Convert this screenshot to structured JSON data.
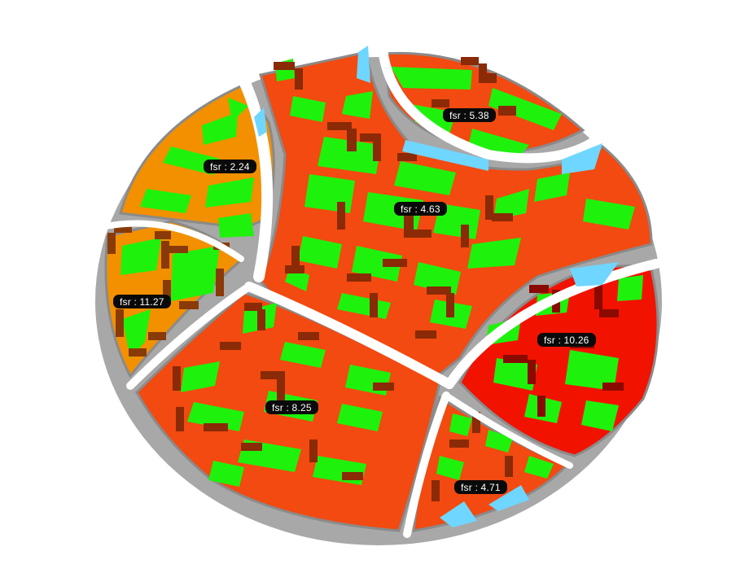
{
  "colors": {
    "orange_light": "#f29000",
    "orange_red": "#f24a10",
    "red": "#f21200",
    "courtyard": "#1ef20c",
    "building_side": "#6a1c06",
    "road": "#ececec",
    "plot_edge": "#9a9a9a",
    "water": "#6fd6ff"
  },
  "districts": [
    {
      "id": "northwest",
      "fsr_text": "fsr : 2.24",
      "color": "#f29000"
    },
    {
      "id": "north",
      "fsr_text": "fsr : 5.38",
      "color": "#f24a10"
    },
    {
      "id": "center",
      "fsr_text": "fsr : 4.63",
      "color": "#f24a10"
    },
    {
      "id": "west",
      "fsr_text": "fsr : 11.27",
      "color": "#f29000"
    },
    {
      "id": "east",
      "fsr_text": "fsr : 10.26",
      "color": "#f21200"
    },
    {
      "id": "southwest",
      "fsr_text": "fsr : 8.25",
      "color": "#f24a10"
    },
    {
      "id": "south",
      "fsr_text": "fsr : 4.71",
      "color": "#f24a10"
    }
  ]
}
